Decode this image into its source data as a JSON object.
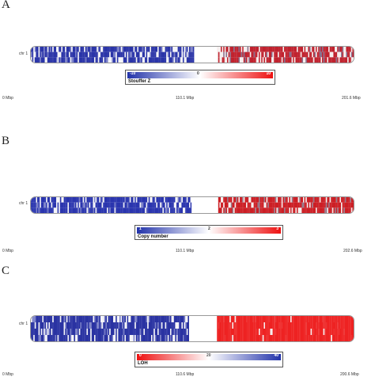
{
  "panels": [
    {
      "letter": "A",
      "chromosome": "chr 1",
      "legend": {
        "title": "Stouffer Z",
        "min": "-10",
        "mid": "0",
        "max": "10",
        "colors": [
          "#2233aa",
          "#ffffff",
          "#ee1111"
        ]
      },
      "axis": {
        "start": "0 Mbp",
        "mid": "110.1 Mbp",
        "end": "201.6 Mbp"
      }
    },
    {
      "letter": "B",
      "chromosome": "chr 1",
      "legend": {
        "title": "Copy number",
        "min": "1",
        "mid": "2",
        "max": "3",
        "colors": [
          "#2233aa",
          "#ffffff",
          "#ee1111"
        ]
      },
      "axis": {
        "start": "0 Mbp",
        "mid": "110.1 Mbp",
        "end": "202.6 Mbp"
      }
    },
    {
      "letter": "C",
      "chromosome": "chr 1",
      "legend": {
        "title": "LOH",
        "min": "0",
        "mid": "20",
        "max": "40",
        "colors": [
          "#ee1111",
          "#ffffff",
          "#2233aa"
        ]
      },
      "axis": {
        "start": "0 Mbp",
        "mid": "110.6 Mbp",
        "end": "200.6 Mbp"
      }
    }
  ]
}
